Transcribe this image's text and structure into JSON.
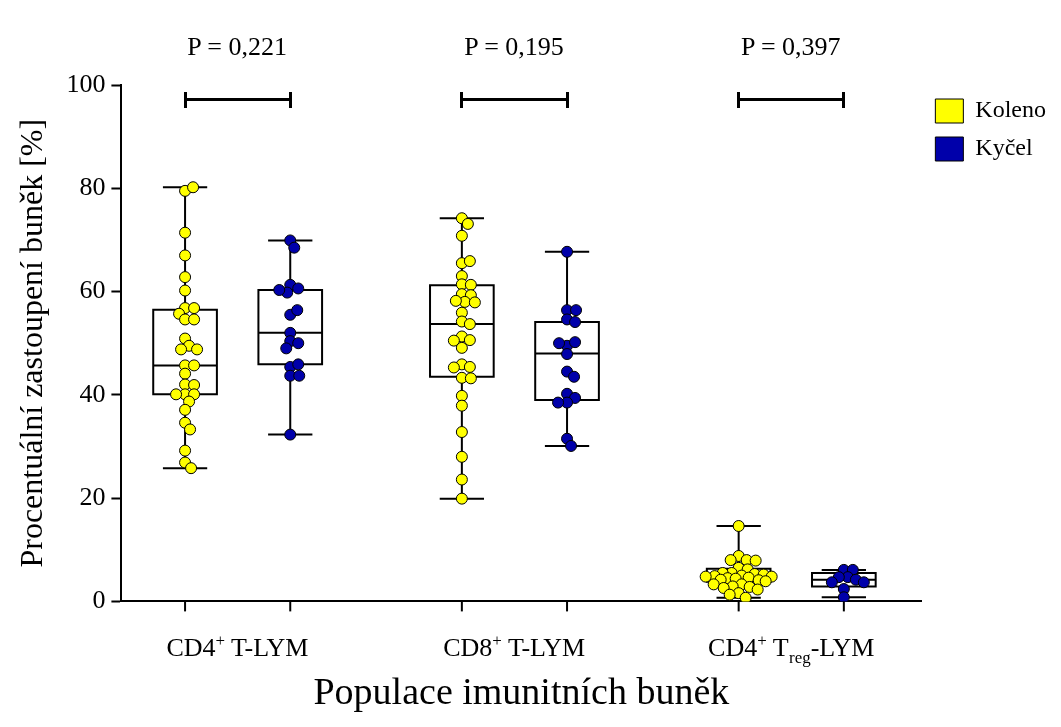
{
  "chart_data": {
    "type": "box",
    "xlabel": "Populace imunitních buněk",
    "ylabel": "Procentuální zastoupení buněk [%]",
    "categories": [
      "CD4$^{+}$ T-LYM",
      "CD8$^{+}$ T-LYM",
      "CD4$^{+}$ T$_{reg}$-LYM"
    ],
    "ylim": [
      0,
      100
    ],
    "yticks": [
      0,
      20,
      40,
      60,
      80,
      100
    ],
    "grid": false,
    "legend": "top right",
    "marker": "circle",
    "annotations": [
      "P = 0,221",
      "P = 0,195",
      "P = 0,397"
    ],
    "series": [
      {
        "color": "#ffffff",
        "boxes": [
          {
            "low": 25.8,
            "q1": 40.1,
            "median": 45.7,
            "q3": 56.5,
            "high": 80.2
          },
          {
            "low": 19.9,
            "q1": 43.5,
            "median": 53.7,
            "q3": 61.2,
            "high": 74.2
          },
          {
            "low": 0.7,
            "q1": 3.8,
            "median": 5.2,
            "q3": 6.3,
            "high": 14.6
          }
        ]
      },
      {
        "color": "#ffffff",
        "boxes": [
          {
            "low": 32.3,
            "q1": 45.9,
            "median": 52.0,
            "q3": 60.3,
            "high": 69.9
          },
          {
            "low": 30.1,
            "q1": 39.0,
            "median": 48.0,
            "q3": 54.1,
            "high": 67.7
          },
          {
            "low": 0.8,
            "q1": 2.9,
            "median": 4.2,
            "q3": 5.5,
            "high": 6.1
          }
        ]
      },
      {
        "type": "scatter",
        "name": "Koleno",
        "color": "#ffff00",
        "x": [
          "CD4$^{+}$ T-LYM",
          "CD4$^{+}$ T-LYM",
          "CD4$^{+}$ T-LYM",
          "CD4$^{+}$ T-LYM",
          "CD4$^{+}$ T-LYM",
          "CD4$^{+}$ T-LYM",
          "CD4$^{+}$ T-LYM",
          "CD4$^{+}$ T-LYM",
          "CD4$^{+}$ T-LYM",
          "CD4$^{+}$ T-LYM",
          "CD4$^{+}$ T-LYM",
          "CD4$^{+}$ T-LYM",
          "CD4$^{+}$ T-LYM",
          "CD4$^{+}$ T-LYM",
          "CD4$^{+}$ T-LYM",
          "CD4$^{+}$ T-LYM",
          "CD4$^{+}$ T-LYM",
          "CD4$^{+}$ T-LYM",
          "CD4$^{+}$ T-LYM",
          "CD4$^{+}$ T-LYM",
          "CD4$^{+}$ T-LYM",
          "CD4$^{+}$ T-LYM",
          "CD4$^{+}$ T-LYM",
          "CD4$^{+}$ T-LYM",
          "CD4$^{+}$ T-LYM",
          "CD4$^{+}$ T-LYM",
          "CD4$^{+}$ T-LYM",
          "CD4$^{+}$ T-LYM",
          "CD4$^{+}$ T-LYM",
          "CD4$^{+}$ T-LYM",
          "CD8$^{+}$ T-LYM",
          "CD8$^{+}$ T-LYM",
          "CD8$^{+}$ T-LYM",
          "CD8$^{+}$ T-LYM",
          "CD8$^{+}$ T-LYM",
          "CD8$^{+}$ T-LYM",
          "CD8$^{+}$ T-LYM",
          "CD8$^{+}$ T-LYM",
          "CD8$^{+}$ T-LYM",
          "CD8$^{+}$ T-LYM",
          "CD8$^{+}$ T-LYM",
          "CD8$^{+}$ T-LYM",
          "CD8$^{+}$ T-LYM",
          "CD8$^{+}$ T-LYM",
          "CD8$^{+}$ T-LYM",
          "CD8$^{+}$ T-LYM",
          "CD8$^{+}$ T-LYM",
          "CD8$^{+}$ T-LYM",
          "CD8$^{+}$ T-LYM",
          "CD8$^{+}$ T-LYM",
          "CD8$^{+}$ T-LYM",
          "CD8$^{+}$ T-LYM",
          "CD8$^{+}$ T-LYM",
          "CD8$^{+}$ T-LYM",
          "CD8$^{+}$ T-LYM",
          "CD8$^{+}$ T-LYM",
          "CD8$^{+}$ T-LYM",
          "CD8$^{+}$ T-LYM",
          "CD8$^{+}$ T-LYM",
          "CD8$^{+}$ T-LYM",
          "CD8$^{+}$ T-LYM",
          "CD4$^{+}$ T$_{reg}$-LYM",
          "CD4$^{+}$ T$_{reg}$-LYM",
          "CD4$^{+}$ T$_{reg}$-LYM",
          "CD4$^{+}$ T$_{reg}$-LYM",
          "CD4$^{+}$ T$_{reg}$-LYM",
          "CD4$^{+}$ T$_{reg}$-LYM",
          "CD4$^{+}$ T$_{reg}$-LYM",
          "CD4$^{+}$ T$_{reg}$-LYM",
          "CD4$^{+}$ T$_{reg}$-LYM",
          "CD4$^{+}$ T$_{reg}$-LYM",
          "CD4$^{+}$ T$_{reg}$-LYM",
          "CD4$^{+}$ T$_{reg}$-LYM",
          "CD4$^{+}$ T$_{reg}$-LYM",
          "CD4$^{+}$ T$_{reg}$-LYM",
          "CD4$^{+}$ T$_{reg}$-LYM",
          "CD4$^{+}$ T$_{reg}$-LYM",
          "CD4$^{+}$ T$_{reg}$-LYM",
          "CD4$^{+}$ T$_{reg}$-LYM",
          "CD4$^{+}$ T$_{reg}$-LYM",
          "CD4$^{+}$ T$_{reg}$-LYM",
          "CD4$^{+}$ T$_{reg}$-LYM",
          "CD4$^{+}$ T$_{reg}$-LYM",
          "CD4$^{+}$ T$_{reg}$-LYM",
          "CD4$^{+}$ T$_{reg}$-LYM",
          "CD4$^{+}$ T$_{reg}$-LYM",
          "CD4$^{+}$ T$_{reg}$-LYM",
          "CD4$^{+}$ T$_{reg}$-LYM",
          "CD4$^{+}$ T$_{reg}$-LYM",
          "CD4$^{+}$ T$_{reg}$-LYM",
          "CD4$^{+}$ T$_{reg}$-LYM"
        ],
        "values": [
          79.5,
          80.2,
          71.4,
          67.0,
          62.8,
          60.2,
          56.8,
          56.8,
          55.7,
          54.6,
          54.6,
          50.9,
          49.5,
          48.8,
          48.8,
          45.7,
          45.7,
          44.1,
          42.0,
          41.9,
          40.1,
          40.1,
          40.1,
          38.7,
          37.1,
          34.6,
          33.3,
          29.2,
          26.9,
          25.8,
          74.2,
          73.1,
          70.8,
          65.5,
          65.9,
          63.0,
          61.4,
          61.3,
          59.5,
          59.3,
          58.0,
          58.2,
          57.9,
          55.9,
          54.2,
          53.7,
          51.3,
          50.6,
          50.5,
          49.1,
          45.9,
          45.4,
          45.3,
          43.3,
          43.2,
          39.8,
          37.9,
          32.8,
          28.0,
          23.6,
          19.9,
          14.6,
          8.8,
          8.0,
          8.0,
          7.9,
          6.5,
          6.2,
          5.5,
          5.5,
          5.3,
          5.2,
          5.0,
          4.9,
          4.8,
          4.8,
          4.6,
          4.5,
          4.4,
          4.2,
          4.1,
          3.9,
          3.3,
          3.3,
          2.9,
          2.8,
          2.6,
          2.3,
          1.6,
          1.3,
          0.7
        ]
      },
      {
        "type": "scatter",
        "name": "Kyčel",
        "color": "#0000aa",
        "x": [
          "CD4$^{+}$ T-LYM",
          "CD4$^{+}$ T-LYM",
          "CD4$^{+}$ T-LYM",
          "CD4$^{+}$ T-LYM",
          "CD4$^{+}$ T-LYM",
          "CD4$^{+}$ T-LYM",
          "CD4$^{+}$ T-LYM",
          "CD4$^{+}$ T-LYM",
          "CD4$^{+}$ T-LYM",
          "CD4$^{+}$ T-LYM",
          "CD4$^{+}$ T-LYM",
          "CD4$^{+}$ T-LYM",
          "CD4$^{+}$ T-LYM",
          "CD4$^{+}$ T-LYM",
          "CD4$^{+}$ T-LYM",
          "CD4$^{+}$ T-LYM",
          "CD4$^{+}$ T-LYM",
          "CD8$^{+}$ T-LYM",
          "CD8$^{+}$ T-LYM",
          "CD8$^{+}$ T-LYM",
          "CD8$^{+}$ T-LYM",
          "CD8$^{+}$ T-LYM",
          "CD8$^{+}$ T-LYM",
          "CD8$^{+}$ T-LYM",
          "CD8$^{+}$ T-LYM",
          "CD8$^{+}$ T-LYM",
          "CD8$^{+}$ T-LYM",
          "CD8$^{+}$ T-LYM",
          "CD8$^{+}$ T-LYM",
          "CD8$^{+}$ T-LYM",
          "CD8$^{+}$ T-LYM",
          "CD8$^{+}$ T-LYM",
          "CD8$^{+}$ T-LYM",
          "CD8$^{+}$ T-LYM",
          "CD4$^{+}$ T$_{reg}$-LYM",
          "CD4$^{+}$ T$_{reg}$-LYM",
          "CD4$^{+}$ T$_{reg}$-LYM",
          "CD4$^{+}$ T$_{reg}$-LYM",
          "CD4$^{+}$ T$_{reg}$-LYM",
          "CD4$^{+}$ T$_{reg}$-LYM",
          "CD4$^{+}$ T$_{reg}$-LYM",
          "CD4$^{+}$ T$_{reg}$-LYM",
          "CD4$^{+}$ T$_{reg}$-LYM"
        ],
        "values": [
          69.9,
          68.5,
          61.3,
          60.6,
          59.8,
          60.3,
          55.5,
          56.4,
          52.0,
          50.4,
          50.0,
          49.0,
          45.4,
          45.9,
          43.7,
          43.7,
          32.3,
          67.7,
          56.4,
          56.4,
          54.6,
          54.1,
          49.5,
          50.2,
          50.0,
          47.9,
          44.5,
          43.5,
          40.2,
          39.4,
          38.5,
          38.5,
          31.5,
          30.1,
          6.1,
          6.1,
          4.7,
          4.7,
          4.2,
          3.7,
          3.7,
          2.4,
          0.8
        ]
      }
    ]
  }
}
